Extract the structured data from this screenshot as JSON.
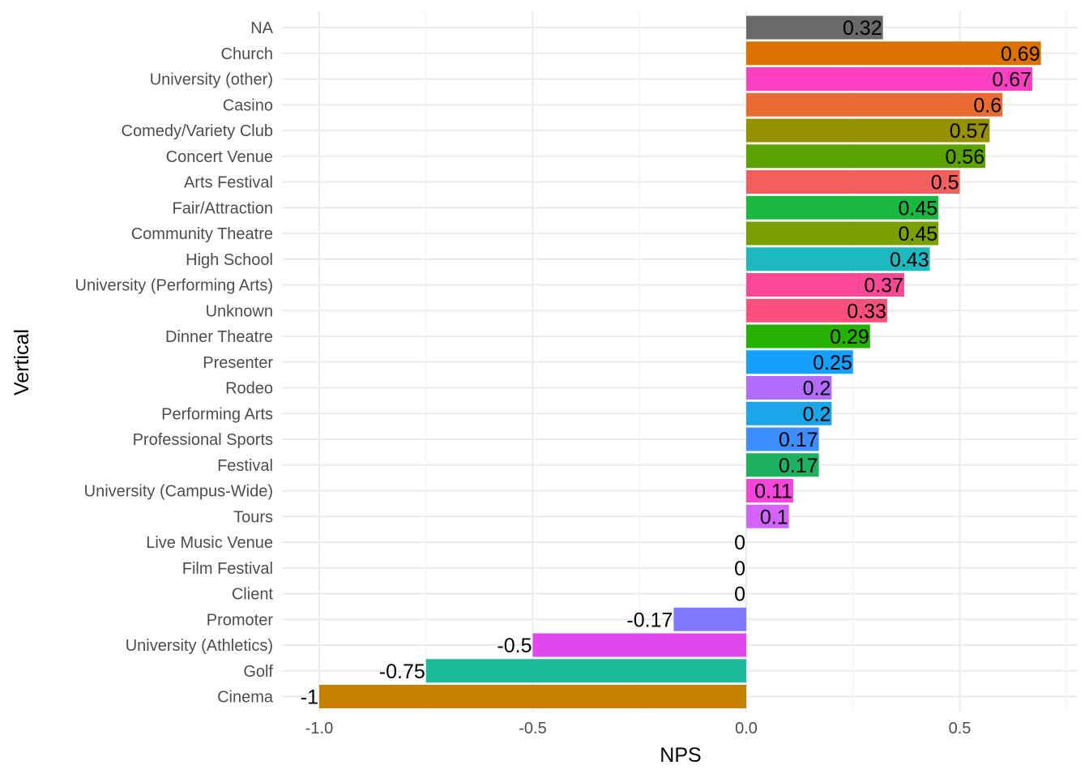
{
  "chart_data": {
    "type": "bar",
    "orientation": "horizontal",
    "xlabel": "NPS",
    "ylabel": "Vertical",
    "xlim": [
      -1.06,
      0.76
    ],
    "xticks": [
      -1.0,
      -0.5,
      0.0,
      0.5
    ],
    "xtick_labels": [
      "-1.0",
      "-0.5",
      "0.0",
      "0.5"
    ],
    "grid": true,
    "legend": "none",
    "categories": [
      "NA",
      "Church",
      "University (other)",
      "Casino",
      "Comedy/Variety Club",
      "Concert Venue",
      "Arts Festival",
      "Fair/Attraction",
      "Community Theatre",
      "High School",
      "University (Performing Arts)",
      "Unknown",
      "Dinner Theatre",
      "Presenter",
      "Rodeo",
      "Performing Arts",
      "Professional Sports",
      "Festival",
      "University (Campus-Wide)",
      "Tours",
      "Live Music Venue",
      "Film Festival",
      "Client",
      "Promoter",
      "University (Athletics)",
      "Golf",
      "Cinema"
    ],
    "values": [
      0.32,
      0.69,
      0.67,
      0.6,
      0.57,
      0.56,
      0.5,
      0.45,
      0.45,
      0.43,
      0.37,
      0.33,
      0.29,
      0.25,
      0.2,
      0.2,
      0.17,
      0.17,
      0.11,
      0.1,
      0,
      0,
      0,
      -0.17,
      -0.5,
      -0.75,
      -1
    ],
    "value_labels": [
      "0.32",
      "0.69",
      "0.67",
      "0.6",
      "0.57",
      "0.56",
      "0.5",
      "0.45",
      "0.45",
      "0.43",
      "0.37",
      "0.33",
      "0.29",
      "0.25",
      "0.2",
      "0.2",
      "0.17",
      "0.17",
      "0.11",
      "0.1",
      "0",
      "0",
      "0",
      "-0.17",
      "-0.5",
      "-0.75",
      "-1"
    ],
    "colors": [
      "#696969",
      "#DB7200",
      "#FD3FC3",
      "#EA6A33",
      "#959100",
      "#5BA300",
      "#F25F5C",
      "#1BB840",
      "#7AA000",
      "#1EB9C0",
      "#FC4897",
      "#FC507C",
      "#24B100",
      "#159FFF",
      "#B26BFF",
      "#1AA6E8",
      "#3D8EFF",
      "#1CB260",
      "#F545DA",
      "#D362FF",
      "#999999",
      "#999999",
      "#999999",
      "#7E79FF",
      "#E048EE",
      "#1ABC9C",
      "#C58000"
    ]
  }
}
